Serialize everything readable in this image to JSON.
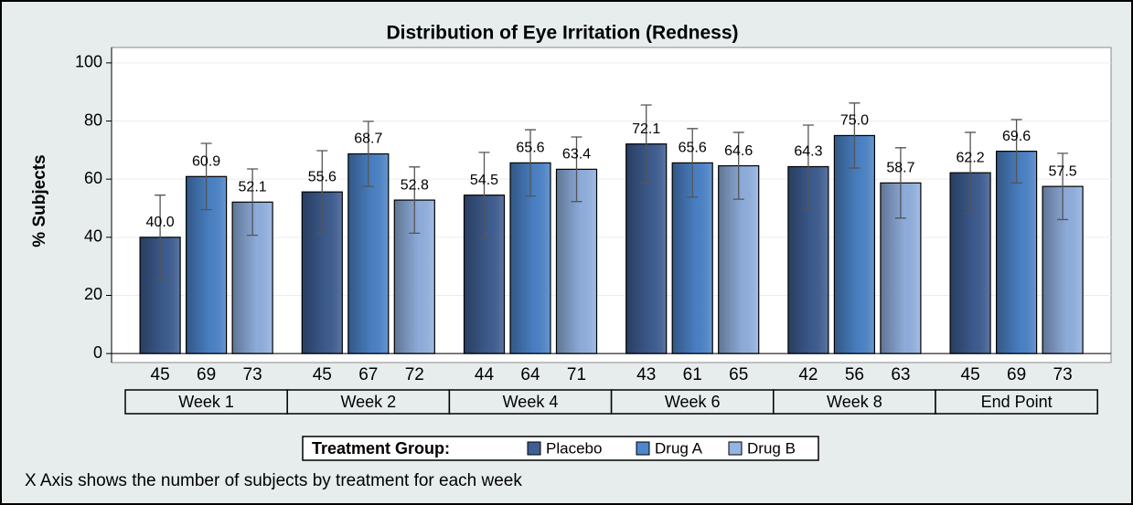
{
  "chart_data": {
    "type": "bar",
    "title": "Distribution of Eye Irritation (Redness)",
    "y_label": "% Subjects",
    "categories": [
      "Week 1",
      "Week 2",
      "Week 4",
      "Week 6",
      "Week 8",
      "End Point"
    ],
    "series": [
      {
        "name": "Placebo",
        "color": "#3f5f94",
        "values": [
          40.0,
          55.6,
          54.5,
          72.1,
          64.3,
          62.2
        ],
        "value_labels": [
          "40.0",
          "55.6",
          "54.5",
          "72.1",
          "64.3",
          "62.2"
        ],
        "errors": [
          14.5,
          14.2,
          14.7,
          13.4,
          14.3,
          13.9
        ],
        "counts": [
          45,
          45,
          44,
          43,
          42,
          45
        ]
      },
      {
        "name": "Drug A",
        "color": "#4d86cc",
        "values": [
          60.9,
          68.7,
          65.6,
          65.6,
          75.0,
          69.6
        ],
        "value_labels": [
          "60.9",
          "68.7",
          "65.6",
          "65.6",
          "75.0",
          "69.6"
        ],
        "errors": [
          11.4,
          11.2,
          11.4,
          11.8,
          11.2,
          10.9
        ],
        "counts": [
          69,
          67,
          64,
          61,
          56,
          69
        ]
      },
      {
        "name": "Drug B",
        "color": "#94b4e4",
        "values": [
          52.1,
          52.8,
          63.4,
          64.6,
          58.7,
          57.5
        ],
        "value_labels": [
          "52.1",
          "52.8",
          "63.4",
          "64.6",
          "58.7",
          "57.5"
        ],
        "errors": [
          11.4,
          11.4,
          11.1,
          11.5,
          12.1,
          11.4
        ],
        "counts": [
          73,
          72,
          71,
          65,
          63,
          73
        ]
      }
    ],
    "ylim": [
      -3.1,
      105.3
    ],
    "yticks": [
      0,
      20,
      40,
      60,
      80,
      100
    ],
    "grid": true,
    "legend_title": "Treatment Group:",
    "legend_position": "bottom",
    "footnote": "X Axis shows the number of subjects by treatment for each week"
  }
}
